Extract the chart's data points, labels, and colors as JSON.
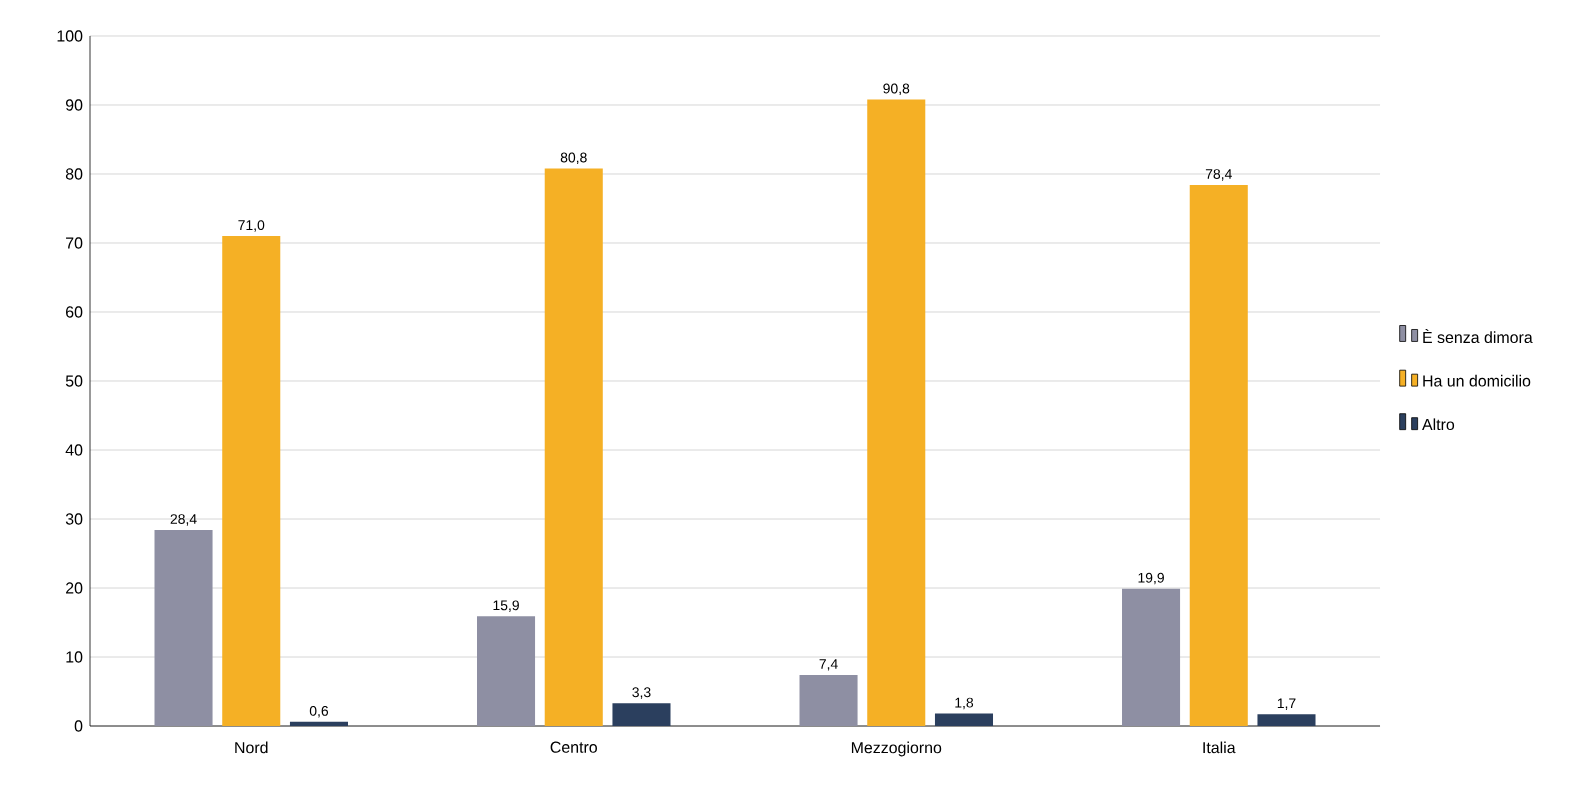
{
  "chart_data": {
    "type": "bar",
    "categories": [
      "Nord",
      "Centro",
      "Mezzogiorno",
      "Italia"
    ],
    "series": [
      {
        "name": "È senza dimora",
        "color": "#8e8fa3",
        "values": [
          28.4,
          15.9,
          7.4,
          19.9
        ],
        "value_labels": [
          "28,4",
          "15,9",
          "7,4",
          "19,9"
        ]
      },
      {
        "name": "Ha un domicilio",
        "color": "#f5b025",
        "values": [
          71.0,
          80.8,
          90.8,
          78.4
        ],
        "value_labels": [
          "71,0",
          "80,8",
          "90,8",
          "78,4"
        ]
      },
      {
        "name": "Altro",
        "color": "#2b3f5e",
        "values": [
          0.6,
          3.3,
          1.8,
          1.7
        ],
        "value_labels": [
          "0,6",
          "3,3",
          "1,8",
          "1,7"
        ]
      }
    ],
    "ylim": [
      0,
      100
    ],
    "yticks": [
      0,
      10,
      20,
      30,
      40,
      50,
      60,
      70,
      80,
      90,
      100
    ],
    "grid": "y",
    "legend": "right"
  }
}
